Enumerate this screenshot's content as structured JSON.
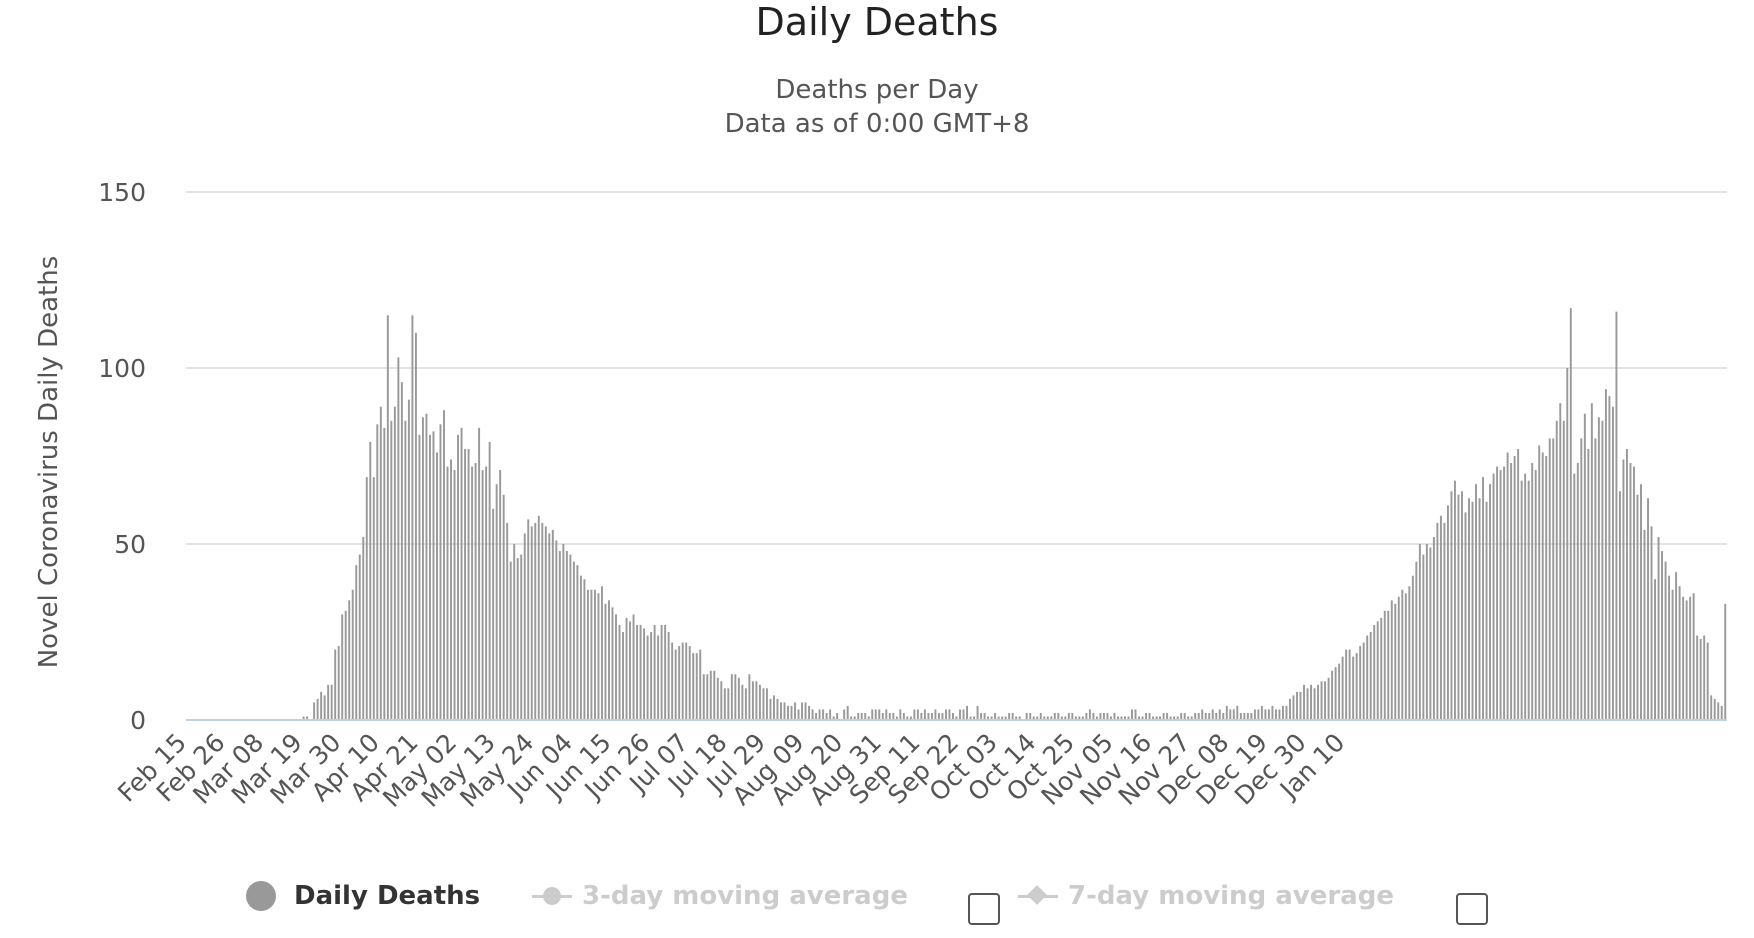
{
  "chart_data": {
    "type": "bar",
    "title": "Daily Deaths",
    "subtitle": [
      "Deaths per Day",
      "Data as of 0:00 GMT+8"
    ],
    "ylabel": "Novel Coronavirus Daily Deaths",
    "ylim": [
      0,
      150
    ],
    "yticks": [
      0,
      50,
      100,
      150
    ],
    "grid": true,
    "legend_placement": "bottom",
    "bar_color": "#999999",
    "start_date": "Feb 15",
    "xtick_labels": [
      "Feb 15",
      "Feb 26",
      "Mar 08",
      "Mar 19",
      "Mar 30",
      "Apr 10",
      "Apr 21",
      "May 02",
      "May 13",
      "May 24",
      "Jun 04",
      "Jun 15",
      "Jun 26",
      "Jul 07",
      "Jul 18",
      "Jul 29",
      "Aug 09",
      "Aug 20",
      "Aug 31",
      "Sep 11",
      "Sep 22",
      "Oct 03",
      "Oct 14",
      "Oct 25",
      "Nov 05",
      "Nov 16",
      "Nov 27",
      "Dec 08",
      "Dec 19",
      "Dec 30",
      "Jan 10"
    ],
    "series": [
      {
        "name": "Daily Deaths",
        "values": [
          0,
          0,
          0,
          0,
          0,
          0,
          0,
          0,
          0,
          0,
          0,
          0,
          0,
          0,
          0,
          0,
          0,
          0,
          0,
          0,
          0,
          0,
          0,
          0,
          0,
          0,
          0,
          0,
          0,
          0,
          0,
          0,
          0,
          1,
          1,
          0,
          5,
          6,
          8,
          7,
          10,
          10,
          20,
          21,
          30,
          31,
          34,
          37,
          44,
          47,
          52,
          69,
          79,
          69,
          84,
          89,
          83,
          115,
          85,
          89,
          103,
          96,
          85,
          91,
          115,
          110,
          81,
          86,
          87,
          81,
          82,
          76,
          84,
          88,
          72,
          74,
          71,
          81,
          83,
          77,
          77,
          72,
          73,
          83,
          71,
          72,
          79,
          60,
          67,
          71,
          64,
          56,
          45,
          50,
          46,
          47,
          53,
          57,
          55,
          56,
          58,
          56,
          55,
          53,
          54,
          51,
          48,
          50,
          48,
          47,
          45,
          44,
          41,
          40,
          37,
          37,
          37,
          36,
          38,
          33,
          34,
          32,
          30,
          27,
          25,
          29,
          28,
          30,
          27,
          27,
          26,
          24,
          25,
          27,
          24,
          27,
          27,
          25,
          22,
          20,
          21,
          22,
          22,
          21,
          19,
          19,
          20,
          13,
          13,
          14,
          14,
          12,
          11,
          9,
          9,
          13,
          13,
          12,
          10,
          9,
          13,
          11,
          11,
          10,
          9,
          9,
          6,
          7,
          6,
          5,
          5,
          4,
          4,
          5,
          3,
          5,
          5,
          4,
          3,
          2,
          3,
          3,
          2,
          3,
          1,
          2,
          0,
          3,
          4,
          1,
          1,
          2,
          2,
          2,
          1,
          3,
          3,
          3,
          2,
          3,
          2,
          2,
          1,
          3,
          2,
          1,
          1,
          3,
          3,
          2,
          3,
          2,
          2,
          3,
          2,
          2,
          3,
          3,
          2,
          1,
          3,
          3,
          4,
          1,
          1,
          4,
          2,
          2,
          1,
          1,
          2,
          1,
          1,
          1,
          2,
          2,
          1,
          1,
          0,
          2,
          2,
          1,
          1,
          2,
          1,
          1,
          1,
          2,
          2,
          1,
          1,
          2,
          2,
          1,
          1,
          1,
          2,
          3,
          2,
          1,
          2,
          2,
          2,
          1,
          2,
          1,
          1,
          1,
          1,
          3,
          3,
          1,
          1,
          2,
          2,
          1,
          1,
          1,
          2,
          2,
          1,
          1,
          1,
          2,
          2,
          1,
          1,
          2,
          2,
          3,
          2,
          2,
          3,
          2,
          3,
          2,
          4,
          3,
          3,
          4,
          2,
          2,
          2,
          2,
          3,
          3,
          4,
          3,
          3,
          4,
          3,
          3,
          4,
          4,
          6,
          7,
          8,
          8,
          10,
          9,
          10,
          9,
          10,
          11,
          11,
          12,
          14,
          15,
          16,
          18,
          20,
          20,
          18,
          19,
          21,
          22,
          24,
          25,
          27,
          28,
          29,
          31,
          31,
          34,
          33,
          35,
          37,
          36,
          38,
          41,
          45,
          50,
          47,
          50,
          49,
          52,
          56,
          58,
          56,
          61,
          65,
          68,
          64,
          65,
          59,
          63,
          62,
          67,
          63,
          69,
          62,
          67,
          70,
          72,
          71,
          72,
          76,
          73,
          75,
          77,
          68,
          70,
          68,
          73,
          71,
          78,
          76,
          75,
          80,
          80,
          85,
          90,
          85,
          100,
          117,
          70,
          73,
          80,
          87,
          77,
          90,
          80,
          86,
          85,
          94,
          92,
          89,
          116,
          65,
          74,
          77,
          73,
          72,
          64,
          67,
          54,
          63,
          55,
          40,
          52,
          48,
          45,
          41,
          37,
          42,
          38,
          35,
          34,
          35,
          36,
          24,
          23,
          24,
          22,
          7,
          6,
          5,
          4,
          33
        ]
      }
    ],
    "legend": {
      "items": [
        {
          "label": "Daily Deaths",
          "active": true
        },
        {
          "label": "3-day moving average",
          "active": false
        },
        {
          "label": "7-day moving average",
          "active": false
        }
      ]
    }
  }
}
